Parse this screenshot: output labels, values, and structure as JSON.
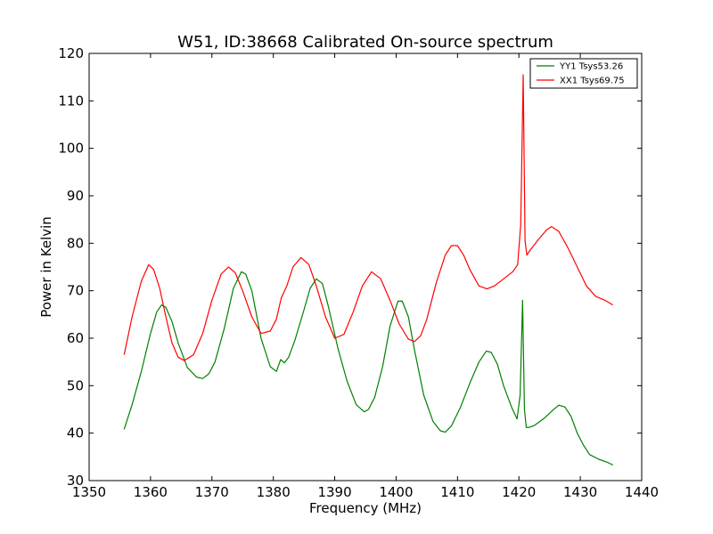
{
  "chart_data": {
    "type": "line",
    "title": "W51, ID:38668 Calibrated On-source spectrum",
    "xlabel": "Frequency (MHz)",
    "ylabel": "Power in Kelvin",
    "xlim": [
      1350,
      1440
    ],
    "ylim": [
      30,
      120
    ],
    "xticks": [
      1350,
      1360,
      1370,
      1380,
      1390,
      1400,
      1410,
      1420,
      1430,
      1440
    ],
    "yticks": [
      30,
      40,
      50,
      60,
      70,
      80,
      90,
      100,
      110,
      120
    ],
    "grid": false,
    "legend_position": "top-right",
    "series": [
      {
        "name": "YY1 Tsys53.26",
        "color": "#008000",
        "x": [
          1355.7,
          1357.0,
          1358.5,
          1360.0,
          1361.0,
          1361.8,
          1362.5,
          1363.5,
          1364.5,
          1366.0,
          1367.5,
          1368.5,
          1369.5,
          1370.5,
          1372.0,
          1373.5,
          1374.8,
          1375.5,
          1376.5,
          1378.0,
          1379.5,
          1380.5,
          1381.2,
          1381.8,
          1382.5,
          1383.5,
          1385.0,
          1386.0,
          1387.0,
          1388.0,
          1389.0,
          1390.5,
          1392.0,
          1393.5,
          1394.8,
          1395.5,
          1396.5,
          1397.8,
          1399.0,
          1400.3,
          1401.0,
          1402.0,
          1403.0,
          1404.5,
          1406.0,
          1407.2,
          1408.0,
          1409.0,
          1410.5,
          1412.0,
          1413.5,
          1414.7,
          1415.5,
          1416.5,
          1417.5,
          1418.8,
          1419.7,
          1420.2,
          1420.6,
          1420.9,
          1421.2,
          1421.6,
          1422.5,
          1424.0,
          1425.5,
          1426.5,
          1427.5,
          1428.5,
          1429.5,
          1430.5,
          1431.5,
          1433.0,
          1434.5,
          1435.3
        ],
        "values": [
          40.8,
          46.0,
          53.0,
          61.0,
          65.5,
          67.0,
          66.5,
          63.5,
          59.0,
          53.8,
          51.8,
          51.5,
          52.5,
          55.0,
          62.0,
          70.5,
          74.0,
          73.5,
          70.0,
          60.0,
          54.0,
          53.0,
          55.5,
          54.8,
          56.0,
          59.5,
          66.0,
          70.5,
          72.5,
          71.5,
          66.5,
          58.0,
          51.0,
          46.0,
          44.5,
          45.0,
          47.5,
          54.0,
          62.5,
          67.8,
          67.8,
          64.5,
          57.5,
          48.0,
          42.5,
          40.5,
          40.2,
          41.5,
          45.5,
          50.5,
          55.0,
          57.3,
          57.0,
          54.5,
          50.0,
          45.5,
          43.0,
          48.0,
          68.0,
          45.0,
          41.2,
          41.2,
          41.6,
          43.0,
          44.8,
          45.9,
          45.5,
          43.5,
          40.0,
          37.5,
          35.5,
          34.5,
          33.8,
          33.3
        ]
      },
      {
        "name": "XX1 Tsys69.75",
        "color": "#ff0000",
        "x": [
          1355.7,
          1357.0,
          1358.5,
          1359.7,
          1360.5,
          1361.5,
          1362.5,
          1363.5,
          1364.5,
          1365.5,
          1367.0,
          1368.5,
          1370.0,
          1371.5,
          1372.7,
          1373.8,
          1375.0,
          1376.5,
          1378.0,
          1379.5,
          1380.5,
          1381.3,
          1382.2,
          1383.2,
          1384.5,
          1385.8,
          1387.0,
          1388.5,
          1390.0,
          1391.5,
          1393.0,
          1394.5,
          1396.0,
          1397.5,
          1399.0,
          1400.5,
          1402.0,
          1403.0,
          1404.0,
          1405.0,
          1406.5,
          1408.0,
          1409.0,
          1410.0,
          1411.0,
          1412.0,
          1413.5,
          1414.8,
          1416.0,
          1417.5,
          1419.0,
          1419.8,
          1420.3,
          1420.7,
          1421.0,
          1421.3,
          1421.8,
          1423.0,
          1424.5,
          1425.3,
          1426.5,
          1428.0,
          1429.5,
          1431.0,
          1432.5,
          1434.0,
          1435.3
        ],
        "values": [
          56.5,
          64.5,
          72.0,
          75.5,
          74.5,
          70.5,
          64.5,
          59.0,
          56.0,
          55.3,
          56.5,
          61.0,
          68.0,
          73.5,
          75.0,
          73.8,
          70.0,
          64.5,
          61.0,
          61.5,
          64.0,
          68.5,
          71.0,
          75.0,
          77.0,
          75.5,
          71.0,
          64.5,
          60.0,
          60.8,
          65.5,
          71.0,
          74.0,
          72.5,
          68.0,
          63.0,
          59.8,
          59.3,
          60.5,
          64.0,
          71.5,
          77.5,
          79.5,
          79.5,
          77.5,
          74.5,
          71.0,
          70.4,
          71.0,
          72.5,
          74.0,
          75.5,
          84.0,
          115.5,
          80.5,
          77.5,
          78.5,
          80.5,
          82.8,
          83.5,
          82.5,
          79.0,
          75.0,
          71.0,
          68.8,
          68.0,
          67.0
        ]
      }
    ]
  }
}
